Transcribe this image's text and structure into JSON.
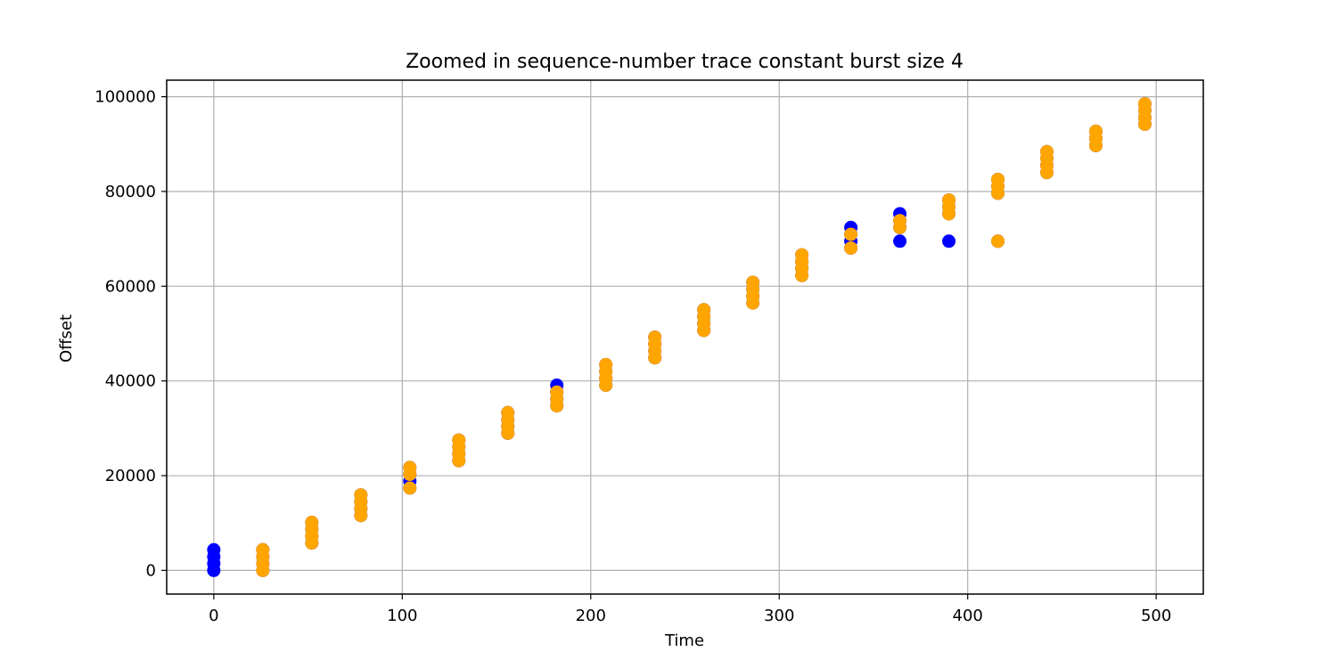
{
  "chart_data": {
    "type": "scatter",
    "title": "Zoomed in sequence-number trace constant burst size 4",
    "xlabel": "Time",
    "ylabel": "Offset",
    "xlim": [
      -25,
      525
    ],
    "ylim": [
      -5000,
      103500
    ],
    "xticks": [
      0,
      100,
      200,
      300,
      400,
      500
    ],
    "yticks": [
      0,
      20000,
      40000,
      60000,
      80000,
      100000
    ],
    "grid": true,
    "legend": "none",
    "series": [
      {
        "color": "#0000ff",
        "points": [
          [
            0,
            0
          ],
          [
            0,
            1448
          ],
          [
            0,
            2896
          ],
          [
            0,
            4344
          ],
          [
            26,
            0
          ],
          [
            26,
            1448
          ],
          [
            26,
            2896
          ],
          [
            26,
            4344
          ],
          [
            52,
            5792
          ],
          [
            52,
            7240
          ],
          [
            52,
            8688
          ],
          [
            52,
            10136
          ],
          [
            78,
            11584
          ],
          [
            78,
            13032
          ],
          [
            78,
            14480
          ],
          [
            78,
            15928
          ],
          [
            104,
            17376
          ],
          [
            104,
            18824
          ],
          [
            104,
            20272
          ],
          [
            104,
            21720
          ],
          [
            130,
            23168
          ],
          [
            130,
            24616
          ],
          [
            130,
            26064
          ],
          [
            130,
            27512
          ],
          [
            156,
            28960
          ],
          [
            156,
            30408
          ],
          [
            156,
            31856
          ],
          [
            156,
            33304
          ],
          [
            182,
            34752
          ],
          [
            182,
            36200
          ],
          [
            182,
            37648
          ],
          [
            182,
            39096
          ],
          [
            208,
            39096
          ],
          [
            208,
            40544
          ],
          [
            208,
            41992
          ],
          [
            208,
            43440
          ],
          [
            234,
            44888
          ],
          [
            234,
            46336
          ],
          [
            234,
            47784
          ],
          [
            234,
            49232
          ],
          [
            260,
            50680
          ],
          [
            260,
            52128
          ],
          [
            260,
            53576
          ],
          [
            260,
            55024
          ],
          [
            286,
            56472
          ],
          [
            286,
            57920
          ],
          [
            286,
            59368
          ],
          [
            286,
            60816
          ],
          [
            312,
            62264
          ],
          [
            312,
            63712
          ],
          [
            312,
            65160
          ],
          [
            312,
            66608
          ],
          [
            338,
            68056
          ],
          [
            338,
            69504
          ],
          [
            338,
            70952
          ],
          [
            338,
            72400
          ],
          [
            364,
            69504
          ],
          [
            364,
            72400
          ],
          [
            364,
            73848
          ],
          [
            364,
            75296
          ],
          [
            390,
            69504
          ],
          [
            390,
            75296
          ],
          [
            390,
            76744
          ],
          [
            390,
            78192
          ],
          [
            416,
            69504
          ],
          [
            416,
            79640
          ],
          [
            416,
            81088
          ],
          [
            416,
            82536
          ],
          [
            442,
            84000
          ],
          [
            442,
            85500
          ],
          [
            442,
            87000
          ],
          [
            442,
            88400
          ],
          [
            468,
            89700
          ],
          [
            468,
            91200
          ],
          [
            468,
            92700
          ],
          [
            494,
            94200
          ],
          [
            494,
            95600
          ],
          [
            494,
            97100
          ],
          [
            494,
            98500
          ]
        ]
      },
      {
        "color": "#ffa500",
        "points": [
          [
            26,
            0
          ],
          [
            26,
            1448
          ],
          [
            26,
            2896
          ],
          [
            26,
            4344
          ],
          [
            52,
            5792
          ],
          [
            52,
            7240
          ],
          [
            52,
            8688
          ],
          [
            52,
            10136
          ],
          [
            78,
            11584
          ],
          [
            78,
            13032
          ],
          [
            78,
            14480
          ],
          [
            78,
            15928
          ],
          [
            104,
            17376
          ],
          [
            104,
            20272
          ],
          [
            104,
            21720
          ],
          [
            130,
            23168
          ],
          [
            130,
            24616
          ],
          [
            130,
            26064
          ],
          [
            130,
            27512
          ],
          [
            156,
            28960
          ],
          [
            156,
            30408
          ],
          [
            156,
            31856
          ],
          [
            156,
            33304
          ],
          [
            182,
            34752
          ],
          [
            182,
            36200
          ],
          [
            182,
            37648
          ],
          [
            208,
            39096
          ],
          [
            208,
            40544
          ],
          [
            208,
            41992
          ],
          [
            208,
            43440
          ],
          [
            234,
            44888
          ],
          [
            234,
            46336
          ],
          [
            234,
            47784
          ],
          [
            234,
            49232
          ],
          [
            260,
            50680
          ],
          [
            260,
            52128
          ],
          [
            260,
            53576
          ],
          [
            260,
            55024
          ],
          [
            286,
            56472
          ],
          [
            286,
            57920
          ],
          [
            286,
            59368
          ],
          [
            286,
            60816
          ],
          [
            312,
            62264
          ],
          [
            312,
            63712
          ],
          [
            312,
            65160
          ],
          [
            312,
            66608
          ],
          [
            338,
            68056
          ],
          [
            338,
            70952
          ],
          [
            364,
            72400
          ],
          [
            364,
            73848
          ],
          [
            390,
            75296
          ],
          [
            390,
            76744
          ],
          [
            390,
            78192
          ],
          [
            416,
            69504
          ],
          [
            416,
            79640
          ],
          [
            416,
            81088
          ],
          [
            416,
            82536
          ],
          [
            442,
            84000
          ],
          [
            442,
            85500
          ],
          [
            442,
            87000
          ],
          [
            442,
            88400
          ],
          [
            468,
            89700
          ],
          [
            468,
            91200
          ],
          [
            468,
            92700
          ],
          [
            494,
            94200
          ],
          [
            494,
            95600
          ],
          [
            494,
            97100
          ],
          [
            494,
            98500
          ]
        ]
      }
    ]
  }
}
